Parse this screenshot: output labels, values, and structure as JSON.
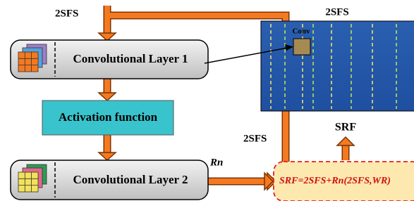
{
  "input_label": "2SFS",
  "layer1": "Convolutional Layer 1",
  "activation": "Activation function",
  "layer2": "Convolutional Layer 2",
  "residual_label": "Rn",
  "skip_label": "2SFS",
  "output_label": "SRF",
  "formula": "SRF=2SFS+Rn(2SFS,WR)",
  "spectrogram_title": "2SFS",
  "conv_label": "Conv"
}
